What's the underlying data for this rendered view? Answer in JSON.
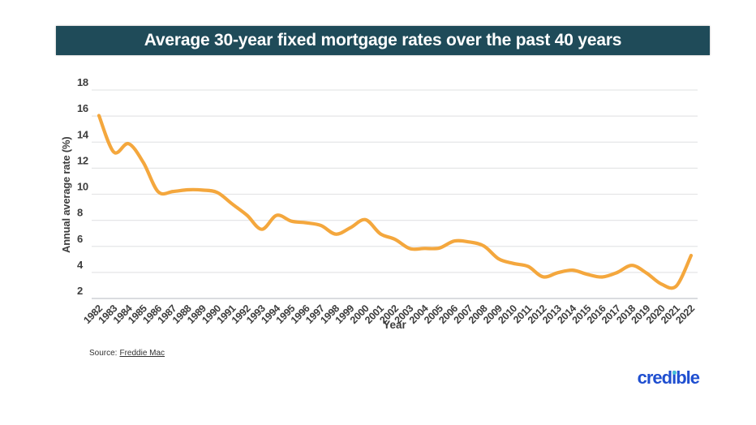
{
  "header": {
    "title": "Average 30-year fixed mortgage rates over the past 40 years",
    "bg_color": "#1f4b59",
    "text_color": "#ffffff"
  },
  "chart_data": {
    "type": "line",
    "title": "Average 30-year fixed mortgage rates over the past 40 years",
    "x": [
      1982,
      1983,
      1984,
      1985,
      1986,
      1987,
      1988,
      1989,
      1990,
      1991,
      1992,
      1993,
      1994,
      1995,
      1996,
      1997,
      1998,
      1999,
      2000,
      2001,
      2002,
      2003,
      2004,
      2005,
      2006,
      2007,
      2008,
      2009,
      2010,
      2011,
      2012,
      2013,
      2014,
      2015,
      2016,
      2017,
      2018,
      2019,
      2020,
      2021,
      2022
    ],
    "series": [
      {
        "name": "Average 30-year fixed mortgage rate",
        "values": [
          16.04,
          13.24,
          13.88,
          12.43,
          10.19,
          10.21,
          10.34,
          10.32,
          10.13,
          9.25,
          8.39,
          7.31,
          8.38,
          7.93,
          7.81,
          7.6,
          6.94,
          7.44,
          8.05,
          6.97,
          6.54,
          5.83,
          5.84,
          5.87,
          6.41,
          6.34,
          6.03,
          5.04,
          4.69,
          4.45,
          3.66,
          3.98,
          4.17,
          3.85,
          3.65,
          3.99,
          4.54,
          3.94,
          3.1,
          2.96,
          5.3
        ]
      }
    ],
    "xlabel": "Year",
    "ylabel": "Annual average rate (%)",
    "ylim": [
      2,
      18
    ],
    "yticks": [
      2,
      4,
      6,
      8,
      10,
      12,
      14,
      16,
      18
    ],
    "grid": true,
    "legend": false,
    "smooth": true,
    "line_color": "#f4a73d",
    "grid_color": "#e5e6e7",
    "axis_line_color": "#c3c8cc",
    "tick_color": "#3d3d3d"
  },
  "footer": {
    "source_prefix": "Source:",
    "source_link": "Freddie Mac",
    "logo_text": "credible",
    "logo_color": "#1f4fd0",
    "logo_dot_color": "#45c1d8"
  }
}
